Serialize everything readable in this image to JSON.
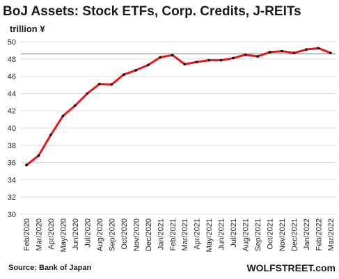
{
  "chart_data": {
    "type": "line",
    "title": "BoJ Assets: Stock ETFs, Corp. Credits, J-REITs",
    "unit_label": "trillion ¥",
    "source": "Source: Bank of Japan",
    "brand": "WOLFSTREET.com",
    "categories": [
      "Feb/2020",
      "Mar/2020",
      "Apr/2020",
      "May/2020",
      "Jun/2020",
      "Jul/2020",
      "Aug/2020",
      "Sep/2020",
      "Oct/2020",
      "Nov/2020",
      "Dec/2020",
      "Jan/2021",
      "Feb/2021",
      "Mar/2021",
      "Apr/2021",
      "May/2021",
      "Jun/2021",
      "Jul/2021",
      "Aug/2021",
      "Sep/2021",
      "Oct/2021",
      "Nov/2021",
      "Dec/2021",
      "Jan/2022",
      "Feb/2022",
      "Mar/2022"
    ],
    "series": [
      {
        "values": [
          35.7,
          36.8,
          39.2,
          41.4,
          42.6,
          44.0,
          45.1,
          45.05,
          46.2,
          46.7,
          47.3,
          48.2,
          48.45,
          47.4,
          47.65,
          47.85,
          47.85,
          48.1,
          48.5,
          48.3,
          48.8,
          48.9,
          48.7,
          49.1,
          49.25,
          48.7
        ]
      }
    ],
    "ylim": [
      30,
      50
    ],
    "yticks": [
      "30",
      "32",
      "34",
      "36",
      "38",
      "40",
      "42",
      "44",
      "46",
      "48",
      "50"
    ],
    "reference_line": 48.6,
    "grid": true,
    "colors": {
      "line": "#e8151b",
      "marker": "#111111",
      "reference": "#3e9b3e",
      "grid": "#d9d9d9"
    }
  }
}
